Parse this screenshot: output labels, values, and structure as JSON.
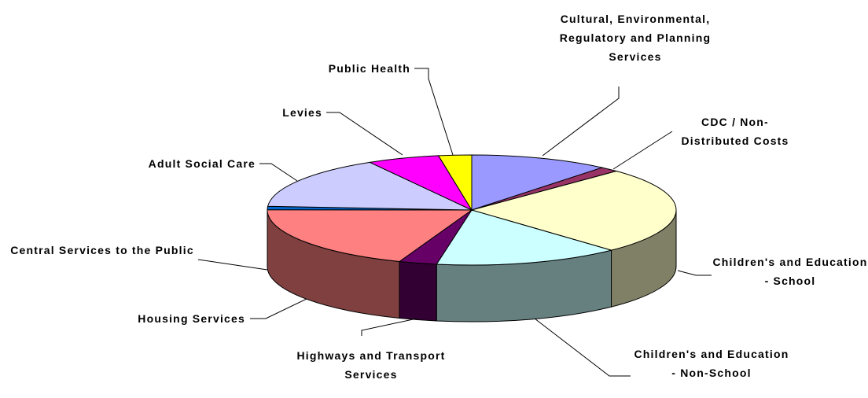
{
  "chart_data": {
    "type": "pie",
    "categories": [
      "Cultural, Environmental, Regulatory and Planning Services",
      "CDC / Non-Distributed Costs",
      "Children's and Education - School",
      "Children's and Education - Non-School",
      "Highways and Transport Services",
      "Housing Services",
      "Central Services to the Public",
      "Adult Social Care",
      "Levies",
      "Public Health"
    ],
    "values": [
      11,
      1.5,
      25.5,
      14.7,
      3,
      19.3,
      1,
      15.6,
      5.7,
      2.6
    ],
    "colors": [
      "#9999ff",
      "#993366",
      "#ffffcc",
      "#ccffff",
      "#660066",
      "#ff8080",
      "#0066cc",
      "#ccccff",
      "#ff00ff",
      "#ffff00"
    ]
  }
}
